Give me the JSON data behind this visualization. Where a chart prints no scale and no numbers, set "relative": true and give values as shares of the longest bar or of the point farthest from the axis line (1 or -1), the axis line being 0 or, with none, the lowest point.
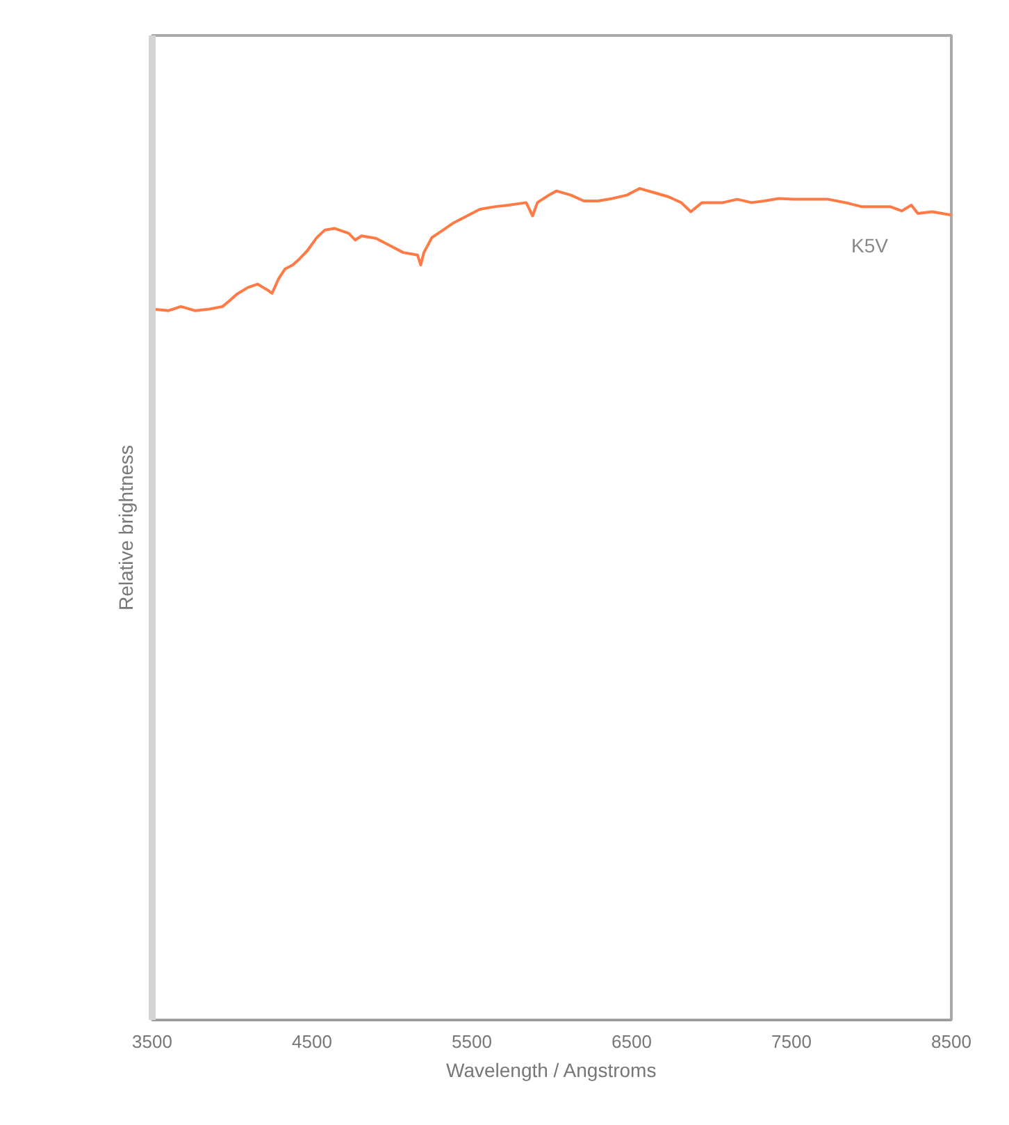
{
  "chart_data": {
    "type": "line",
    "relative": true,
    "xlabel": "Wavelength / Angstroms",
    "ylabel": "Relative brightness",
    "xlim": [
      3500,
      8500
    ],
    "xticks": [
      3500,
      4500,
      5500,
      6500,
      7500,
      8500
    ],
    "grid": false,
    "marker": "none",
    "line_style": "solid",
    "x": [
      3500,
      3600,
      3680,
      3770,
      3860,
      3940,
      3990,
      4030,
      4100,
      4160,
      4220,
      4250,
      4290,
      4330,
      4380,
      4420,
      4470,
      4530,
      4580,
      4640,
      4730,
      4770,
      4810,
      4900,
      4990,
      5070,
      5160,
      5180,
      5200,
      5250,
      5320,
      5380,
      5470,
      5550,
      5640,
      5730,
      5840,
      5880,
      5910,
      5990,
      6030,
      6120,
      6200,
      6290,
      6380,
      6470,
      6550,
      6640,
      6730,
      6810,
      6870,
      6940,
      7070,
      7160,
      7250,
      7330,
      7420,
      7510,
      7600,
      7730,
      7860,
      7940,
      8120,
      8190,
      8250,
      8290,
      8380,
      8500
    ],
    "series": [
      {
        "name": "K5V",
        "color": "#ff7a45",
        "values": [
          0.855,
          0.853,
          0.858,
          0.853,
          0.855,
          0.858,
          0.866,
          0.873,
          0.881,
          0.885,
          0.878,
          0.874,
          0.891,
          0.903,
          0.908,
          0.915,
          0.925,
          0.941,
          0.95,
          0.952,
          0.946,
          0.938,
          0.943,
          0.94,
          0.931,
          0.923,
          0.92,
          0.908,
          0.923,
          0.941,
          0.95,
          0.958,
          0.967,
          0.975,
          0.978,
          0.98,
          0.983,
          0.967,
          0.983,
          0.993,
          0.997,
          0.992,
          0.985,
          0.985,
          0.988,
          0.992,
          1.0,
          0.995,
          0.99,
          0.983,
          0.972,
          0.983,
          0.983,
          0.987,
          0.983,
          0.985,
          0.988,
          0.987,
          0.987,
          0.987,
          0.982,
          0.978,
          0.978,
          0.973,
          0.98,
          0.97,
          0.972,
          0.968
        ]
      }
    ]
  }
}
